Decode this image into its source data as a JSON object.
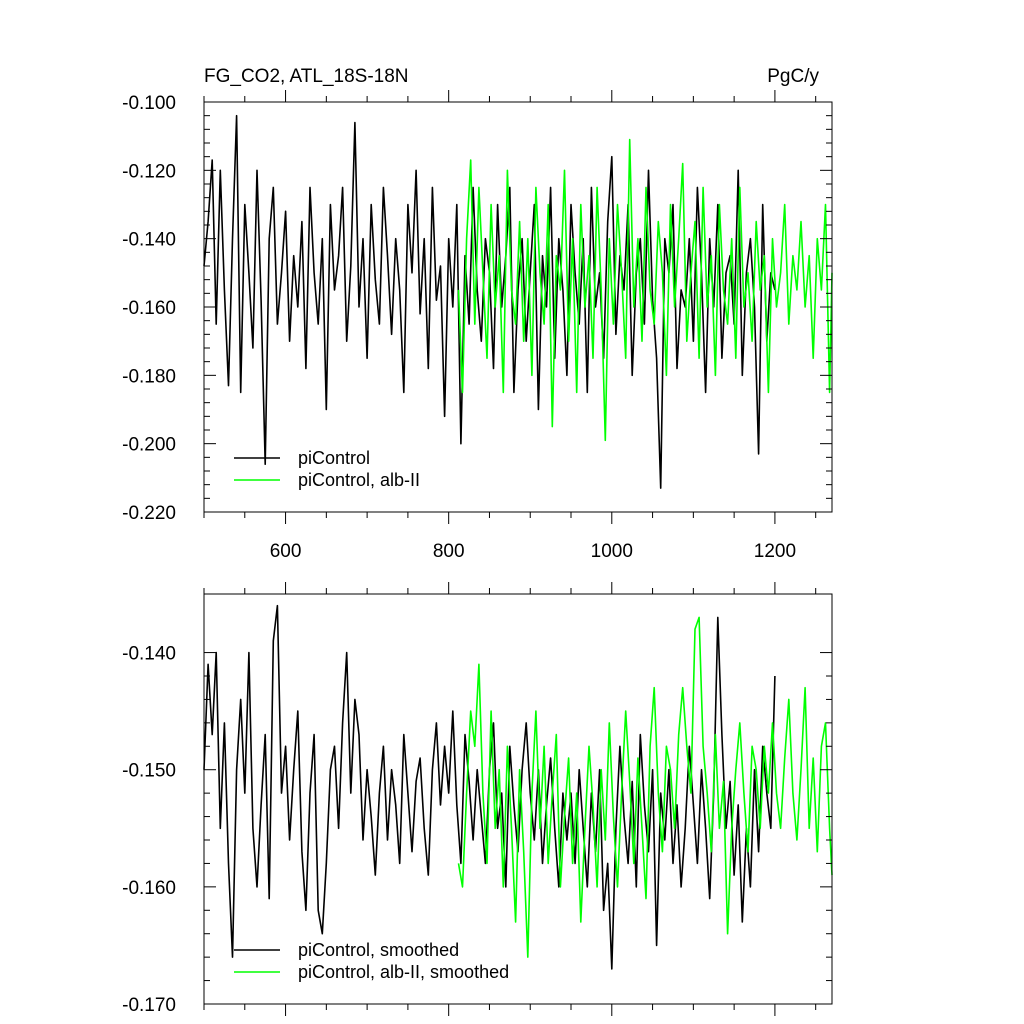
{
  "header": {
    "title": "FG_CO2, ATL_18S-18N",
    "units": "PgC/y"
  },
  "colors": {
    "piControl": "#000000",
    "alb_II": "#00ff00",
    "axis": "#000000"
  },
  "chart_data": [
    {
      "type": "line",
      "xlim": [
        500,
        1270
      ],
      "ylim": [
        -0.22,
        -0.1
      ],
      "x_ticks": [
        600,
        800,
        1000,
        1200
      ],
      "x_tick_labels": [
        "600",
        "800",
        "1000",
        "1200"
      ],
      "y_ticks": [
        -0.22,
        -0.2,
        -0.18,
        -0.16,
        -0.14,
        -0.12,
        -0.1
      ],
      "y_tick_labels": [
        "-0.220",
        "-0.200",
        "-0.180",
        "-0.160",
        "-0.140",
        "-0.120",
        "-0.100"
      ],
      "legend_placement": "bottom-left",
      "series": [
        {
          "name": "piControl",
          "color": "#000000",
          "x": [
            500,
            505,
            510,
            515,
            520,
            525,
            530,
            535,
            540,
            545,
            550,
            555,
            560,
            565,
            570,
            575,
            580,
            585,
            590,
            595,
            600,
            605,
            610,
            615,
            620,
            625,
            630,
            635,
            640,
            645,
            650,
            655,
            660,
            665,
            670,
            675,
            680,
            685,
            690,
            695,
            700,
            705,
            710,
            715,
            720,
            725,
            730,
            735,
            740,
            745,
            750,
            755,
            760,
            765,
            770,
            775,
            780,
            785,
            790,
            795,
            800,
            805,
            810,
            815,
            820,
            825,
            830,
            835,
            840,
            845,
            850,
            855,
            860,
            865,
            870,
            875,
            880,
            885,
            890,
            895,
            900,
            905,
            910,
            915,
            920,
            925,
            930,
            935,
            940,
            945,
            950,
            955,
            960,
            965,
            970,
            975,
            980,
            985,
            990,
            995,
            1000,
            1005,
            1010,
            1015,
            1020,
            1025,
            1030,
            1035,
            1040,
            1045,
            1050,
            1055,
            1060,
            1065,
            1070,
            1075,
            1080,
            1085,
            1090,
            1095,
            1100,
            1105,
            1110,
            1115,
            1120,
            1125,
            1130,
            1135,
            1140,
            1145,
            1150,
            1155,
            1160,
            1165,
            1170,
            1175,
            1180,
            1185,
            1190,
            1195,
            1200
          ],
          "y": [
            -0.148,
            -0.135,
            -0.117,
            -0.165,
            -0.12,
            -0.155,
            -0.183,
            -0.14,
            -0.104,
            -0.185,
            -0.13,
            -0.15,
            -0.172,
            -0.12,
            -0.158,
            -0.206,
            -0.14,
            -0.125,
            -0.165,
            -0.15,
            -0.132,
            -0.17,
            -0.145,
            -0.16,
            -0.135,
            -0.178,
            -0.125,
            -0.15,
            -0.165,
            -0.14,
            -0.19,
            -0.13,
            -0.155,
            -0.145,
            -0.125,
            -0.17,
            -0.148,
            -0.106,
            -0.16,
            -0.14,
            -0.175,
            -0.13,
            -0.152,
            -0.165,
            -0.125,
            -0.145,
            -0.168,
            -0.14,
            -0.155,
            -0.185,
            -0.13,
            -0.15,
            -0.12,
            -0.162,
            -0.14,
            -0.178,
            -0.125,
            -0.158,
            -0.148,
            -0.192,
            -0.14,
            -0.16,
            -0.13,
            -0.2,
            -0.145,
            -0.165,
            -0.125,
            -0.155,
            -0.17,
            -0.14,
            -0.15,
            -0.178,
            -0.13,
            -0.16,
            -0.145,
            -0.125,
            -0.185,
            -0.155,
            -0.14,
            -0.17,
            -0.15,
            -0.13,
            -0.19,
            -0.145,
            -0.16,
            -0.125,
            -0.175,
            -0.14,
            -0.155,
            -0.18,
            -0.13,
            -0.15,
            -0.165,
            -0.14,
            -0.185,
            -0.125,
            -0.16,
            -0.15,
            -0.175,
            -0.135,
            -0.116,
            -0.168,
            -0.145,
            -0.155,
            -0.13,
            -0.18,
            -0.15,
            -0.14,
            -0.165,
            -0.12,
            -0.158,
            -0.175,
            -0.213,
            -0.14,
            -0.15,
            -0.13,
            -0.178,
            -0.155,
            -0.16,
            -0.14,
            -0.17,
            -0.125,
            -0.15,
            -0.185,
            -0.14,
            -0.16,
            -0.13,
            -0.175,
            -0.15,
            -0.145,
            -0.165,
            -0.12,
            -0.18,
            -0.15,
            -0.14,
            -0.16,
            -0.203,
            -0.13,
            -0.17,
            -0.15,
            -0.155
          ]
        },
        {
          "name": "piControl, alb-II",
          "color": "#00ff00",
          "x": [
            812,
            817,
            822,
            827,
            832,
            837,
            842,
            847,
            852,
            857,
            862,
            867,
            872,
            877,
            882,
            887,
            892,
            897,
            902,
            907,
            912,
            917,
            922,
            927,
            932,
            937,
            942,
            947,
            952,
            957,
            962,
            967,
            972,
            977,
            982,
            987,
            992,
            997,
            1002,
            1007,
            1012,
            1017,
            1022,
            1027,
            1032,
            1037,
            1042,
            1047,
            1052,
            1057,
            1062,
            1067,
            1072,
            1077,
            1082,
            1087,
            1092,
            1097,
            1102,
            1107,
            1112,
            1117,
            1122,
            1127,
            1132,
            1137,
            1142,
            1147,
            1152,
            1157,
            1162,
            1167,
            1172,
            1177,
            1182,
            1187,
            1192,
            1197,
            1202,
            1207,
            1212,
            1217,
            1222,
            1227,
            1232,
            1237,
            1242,
            1247,
            1252,
            1257,
            1262,
            1267,
            1270
          ],
          "y": [
            -0.155,
            -0.185,
            -0.14,
            -0.117,
            -0.165,
            -0.125,
            -0.15,
            -0.175,
            -0.13,
            -0.16,
            -0.145,
            -0.185,
            -0.12,
            -0.155,
            -0.165,
            -0.135,
            -0.17,
            -0.14,
            -0.18,
            -0.125,
            -0.15,
            -0.165,
            -0.13,
            -0.195,
            -0.145,
            -0.155,
            -0.12,
            -0.17,
            -0.14,
            -0.185,
            -0.13,
            -0.16,
            -0.145,
            -0.175,
            -0.125,
            -0.155,
            -0.199,
            -0.14,
            -0.165,
            -0.13,
            -0.15,
            -0.175,
            -0.111,
            -0.16,
            -0.14,
            -0.17,
            -0.125,
            -0.155,
            -0.165,
            -0.135,
            -0.15,
            -0.18,
            -0.13,
            -0.16,
            -0.14,
            -0.118,
            -0.17,
            -0.15,
            -0.135,
            -0.175,
            -0.125,
            -0.16,
            -0.145,
            -0.18,
            -0.13,
            -0.155,
            -0.165,
            -0.14,
            -0.175,
            -0.125,
            -0.16,
            -0.15,
            -0.17,
            -0.135,
            -0.155,
            -0.145,
            -0.185,
            -0.14,
            -0.16,
            -0.15,
            -0.13,
            -0.165,
            -0.145,
            -0.155,
            -0.135,
            -0.16,
            -0.145,
            -0.175,
            -0.14,
            -0.155,
            -0.13,
            -0.185,
            -0.15
          ]
        }
      ]
    },
    {
      "type": "line",
      "xlim": [
        500,
        1270
      ],
      "ylim": [
        -0.17,
        -0.135
      ],
      "x_ticks": [
        600,
        800,
        1000,
        1200
      ],
      "x_tick_labels": [],
      "y_ticks": [
        -0.17,
        -0.16,
        -0.15,
        -0.14
      ],
      "y_tick_labels": [
        "-0.170",
        "-0.160",
        "-0.150",
        "-0.140"
      ],
      "legend_placement": "bottom-left",
      "series": [
        {
          "name": "piControl, smoothed",
          "color": "#000000",
          "x": [
            500,
            505,
            510,
            515,
            520,
            525,
            530,
            535,
            540,
            545,
            550,
            555,
            560,
            565,
            570,
            575,
            580,
            585,
            590,
            595,
            600,
            605,
            610,
            615,
            620,
            625,
            630,
            635,
            640,
            645,
            650,
            655,
            660,
            665,
            670,
            675,
            680,
            685,
            690,
            695,
            700,
            705,
            710,
            715,
            720,
            725,
            730,
            735,
            740,
            745,
            750,
            755,
            760,
            765,
            770,
            775,
            780,
            785,
            790,
            795,
            800,
            805,
            810,
            815,
            820,
            825,
            830,
            835,
            840,
            845,
            850,
            855,
            860,
            865,
            870,
            875,
            880,
            885,
            890,
            895,
            900,
            905,
            910,
            915,
            920,
            925,
            930,
            935,
            940,
            945,
            950,
            955,
            960,
            965,
            970,
            975,
            980,
            985,
            990,
            995,
            1000,
            1005,
            1010,
            1015,
            1020,
            1025,
            1030,
            1035,
            1040,
            1045,
            1050,
            1055,
            1060,
            1065,
            1070,
            1075,
            1080,
            1085,
            1090,
            1095,
            1100,
            1105,
            1110,
            1115,
            1120,
            1125,
            1130,
            1135,
            1140,
            1145,
            1150,
            1155,
            1160,
            1165,
            1170,
            1175,
            1180,
            1185,
            1190,
            1195,
            1200
          ],
          "y": [
            -0.15,
            -0.141,
            -0.147,
            -0.14,
            -0.155,
            -0.146,
            -0.158,
            -0.166,
            -0.15,
            -0.144,
            -0.152,
            -0.14,
            -0.155,
            -0.16,
            -0.153,
            -0.147,
            -0.161,
            -0.139,
            -0.136,
            -0.152,
            -0.148,
            -0.156,
            -0.15,
            -0.145,
            -0.157,
            -0.162,
            -0.152,
            -0.147,
            -0.162,
            -0.164,
            -0.158,
            -0.15,
            -0.148,
            -0.155,
            -0.146,
            -0.14,
            -0.152,
            -0.144,
            -0.147,
            -0.156,
            -0.15,
            -0.154,
            -0.159,
            -0.152,
            -0.148,
            -0.156,
            -0.15,
            -0.153,
            -0.158,
            -0.147,
            -0.152,
            -0.157,
            -0.151,
            -0.149,
            -0.155,
            -0.159,
            -0.15,
            -0.146,
            -0.153,
            -0.148,
            -0.152,
            -0.145,
            -0.153,
            -0.158,
            -0.147,
            -0.151,
            -0.156,
            -0.15,
            -0.154,
            -0.158,
            -0.15,
            -0.146,
            -0.155,
            -0.152,
            -0.16,
            -0.148,
            -0.153,
            -0.157,
            -0.15,
            -0.146,
            -0.152,
            -0.156,
            -0.15,
            -0.158,
            -0.153,
            -0.149,
            -0.155,
            -0.16,
            -0.152,
            -0.156,
            -0.152,
            -0.158,
            -0.15,
            -0.155,
            -0.16,
            -0.152,
            -0.157,
            -0.15,
            -0.162,
            -0.158,
            -0.167,
            -0.155,
            -0.148,
            -0.154,
            -0.158,
            -0.151,
            -0.16,
            -0.147,
            -0.153,
            -0.157,
            -0.15,
            -0.165,
            -0.152,
            -0.156,
            -0.15,
            -0.158,
            -0.153,
            -0.16,
            -0.155,
            -0.148,
            -0.153,
            -0.158,
            -0.15,
            -0.155,
            -0.161,
            -0.152,
            -0.137,
            -0.147,
            -0.155,
            -0.151,
            -0.159,
            -0.153,
            -0.163,
            -0.155,
            -0.16,
            -0.15,
            -0.157,
            -0.148,
            -0.152,
            -0.155,
            -0.142
          ]
        },
        {
          "name": "piControl, alb-II, smoothed",
          "color": "#00ff00",
          "x": [
            812,
            817,
            822,
            827,
            832,
            837,
            842,
            847,
            852,
            857,
            862,
            867,
            872,
            877,
            882,
            887,
            892,
            897,
            902,
            907,
            912,
            917,
            922,
            927,
            932,
            937,
            942,
            947,
            952,
            957,
            962,
            967,
            972,
            977,
            982,
            987,
            992,
            997,
            1002,
            1007,
            1012,
            1017,
            1022,
            1027,
            1032,
            1037,
            1042,
            1047,
            1052,
            1057,
            1062,
            1067,
            1072,
            1077,
            1082,
            1087,
            1092,
            1097,
            1102,
            1107,
            1112,
            1117,
            1122,
            1127,
            1132,
            1137,
            1142,
            1147,
            1152,
            1157,
            1162,
            1167,
            1172,
            1177,
            1182,
            1187,
            1192,
            1197,
            1202,
            1207,
            1212,
            1217,
            1222,
            1227,
            1232,
            1237,
            1242,
            1247,
            1252,
            1257,
            1262,
            1267,
            1270
          ],
          "y": [
            -0.158,
            -0.16,
            -0.152,
            -0.145,
            -0.148,
            -0.141,
            -0.152,
            -0.158,
            -0.145,
            -0.155,
            -0.15,
            -0.16,
            -0.148,
            -0.155,
            -0.163,
            -0.15,
            -0.157,
            -0.166,
            -0.152,
            -0.145,
            -0.155,
            -0.148,
            -0.158,
            -0.152,
            -0.147,
            -0.16,
            -0.154,
            -0.149,
            -0.158,
            -0.152,
            -0.163,
            -0.155,
            -0.148,
            -0.153,
            -0.16,
            -0.15,
            -0.156,
            -0.146,
            -0.154,
            -0.16,
            -0.152,
            -0.145,
            -0.151,
            -0.158,
            -0.149,
            -0.155,
            -0.161,
            -0.148,
            -0.143,
            -0.152,
            -0.157,
            -0.148,
            -0.15,
            -0.155,
            -0.147,
            -0.143,
            -0.148,
            -0.152,
            -0.138,
            -0.137,
            -0.148,
            -0.152,
            -0.157,
            -0.147,
            -0.155,
            -0.151,
            -0.164,
            -0.155,
            -0.15,
            -0.146,
            -0.152,
            -0.157,
            -0.148,
            -0.15,
            -0.155,
            -0.148,
            -0.152,
            -0.146,
            -0.152,
            -0.155,
            -0.149,
            -0.144,
            -0.152,
            -0.156,
            -0.15,
            -0.143,
            -0.155,
            -0.149,
            -0.157,
            -0.148,
            -0.146,
            -0.155,
            -0.159
          ]
        }
      ]
    }
  ]
}
